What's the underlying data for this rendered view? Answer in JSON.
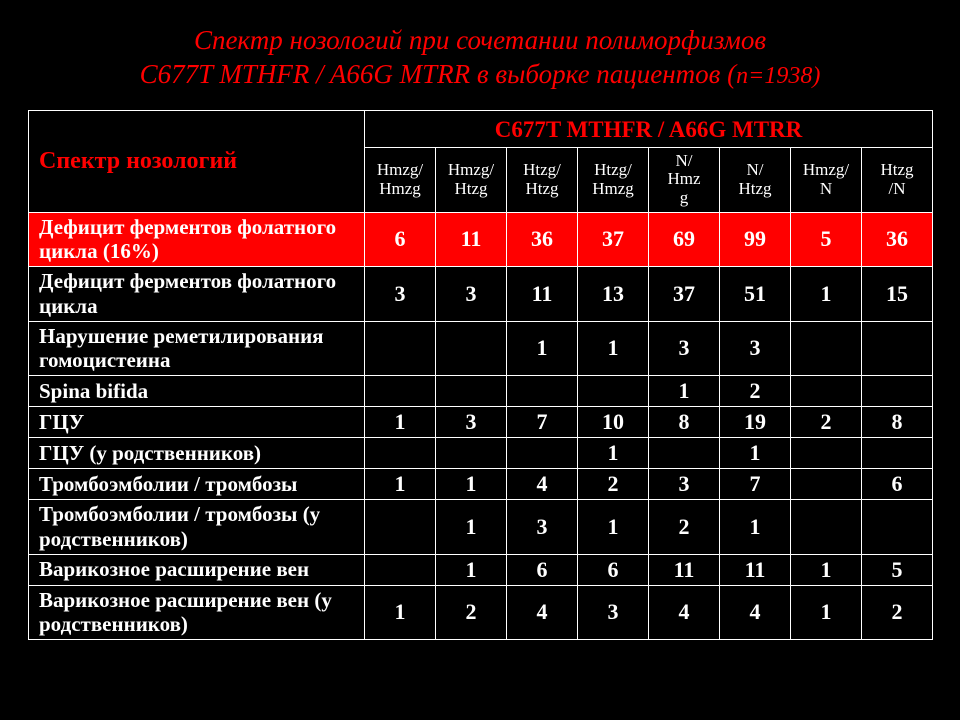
{
  "title_line1": "Спектр нозологий при сочетании полиморфизмов",
  "title_line2_a": "C677T MTHFR / A66G MTRR в выборке пациентов (",
  "title_line2_b": "n=1938)",
  "spectr_header": "Спектр нозологий",
  "combo_header": "C677T MTHFR / A66G MTRR",
  "columns": [
    "Hmzg/\nHmzg",
    "Hmzg/\nHtzg",
    "Htzg/\nHtzg",
    "Htzg/\nHmzg",
    "N/\nHmz\ng",
    "N/\nHtzg",
    "Hmzg/\nN",
    "Htzg\n/N"
  ],
  "rows": [
    {
      "label": "Дефицит ферментов фолатного цикла (16%)",
      "vals": [
        "6",
        "11",
        "36",
        "37",
        "69",
        "99",
        "5",
        "36"
      ],
      "red": true
    },
    {
      "label": "Дефицит ферментов фолатного цикла",
      "vals": [
        "3",
        "3",
        "11",
        "13",
        "37",
        "51",
        "1",
        "15"
      ]
    },
    {
      "label": "Нарушение реметилирования гомоцистеина",
      "vals": [
        "",
        "",
        "1",
        "1",
        "3",
        "3",
        "",
        ""
      ]
    },
    {
      "label": "Spina bifida",
      "vals": [
        "",
        "",
        "",
        "",
        "1",
        "2",
        "",
        ""
      ]
    },
    {
      "label": "ГЦУ",
      "vals": [
        "1",
        "3",
        "7",
        "10",
        "8",
        "19",
        "2",
        "8"
      ]
    },
    {
      "label": "ГЦУ (у родственников)",
      "vals": [
        "",
        "",
        "",
        "1",
        "",
        "1",
        "",
        ""
      ]
    },
    {
      "label": "Тромбоэмболии / тромбозы",
      "vals": [
        "1",
        "1",
        "4",
        "2",
        "3",
        "7",
        "",
        "6"
      ]
    },
    {
      "label": "Тромбоэмболии / тромбозы (у родственников)",
      "vals": [
        "",
        "1",
        "3",
        "1",
        "2",
        "1",
        "",
        ""
      ]
    },
    {
      "label": "Варикозное расширение вен",
      "vals": [
        "",
        "1",
        "6",
        "6",
        "11",
        "11",
        "1",
        "5"
      ]
    },
    {
      "label": "Варикозное расширение вен (у родственников)",
      "vals": [
        "1",
        "2",
        "4",
        "3",
        "4",
        "4",
        "1",
        "2"
      ]
    }
  ],
  "style": {
    "background_color": "#000000",
    "text_color": "#ffffff",
    "accent_color": "#ff0000",
    "highlight_row_bg": "#ff0000",
    "border_color": "#ffffff",
    "title_fontsize": 27,
    "header_fontsize": 24,
    "subheader_fontsize": 17,
    "body_fontsize": 22,
    "font_family": "Times New Roman"
  }
}
